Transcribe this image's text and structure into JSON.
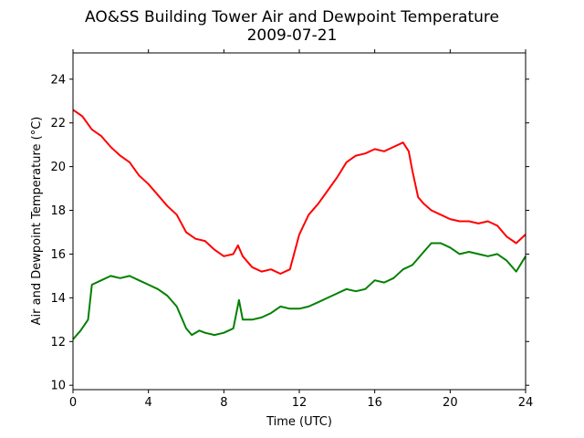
{
  "chart_data": {
    "type": "line",
    "title": "AO&SS Building Tower Air and Dewpoint Temperature",
    "subtitle": "2009-07-21",
    "xlabel": "Time (UTC)",
    "ylabel": "Air and Dewpoint Temperature (°C)",
    "xlim": [
      0,
      24
    ],
    "ylim": [
      9.8,
      25.2
    ],
    "xticks": [
      0,
      4,
      8,
      12,
      16,
      20,
      24
    ],
    "yticks": [
      10,
      12,
      14,
      16,
      18,
      20,
      22,
      24
    ],
    "grid": false,
    "legend": "none",
    "series": [
      {
        "color": "#ff0000",
        "x": [
          0,
          0.5,
          1,
          1.5,
          2,
          2.5,
          3,
          3.5,
          4,
          4.5,
          5,
          5.5,
          6,
          6.5,
          7,
          7.5,
          8,
          8.5,
          8.75,
          9,
          9.5,
          10,
          10.5,
          11,
          11.5,
          12,
          12.5,
          13,
          13.5,
          14,
          14.5,
          15,
          15.5,
          16,
          16.5,
          17,
          17.5,
          17.8,
          18,
          18.3,
          18.6,
          19,
          19.5,
          20,
          20.5,
          21,
          21.5,
          22,
          22.5,
          23,
          23.5,
          24
        ],
        "y": [
          22.6,
          22.3,
          21.7,
          21.4,
          20.9,
          20.5,
          20.2,
          19.6,
          19.2,
          18.7,
          18.2,
          17.8,
          17.0,
          16.7,
          16.6,
          16.2,
          15.9,
          16.0,
          16.4,
          15.9,
          15.4,
          15.2,
          15.3,
          15.1,
          15.3,
          16.9,
          17.8,
          18.3,
          18.9,
          19.5,
          20.2,
          20.5,
          20.6,
          20.8,
          20.7,
          20.9,
          21.1,
          20.7,
          19.8,
          18.6,
          18.3,
          18.0,
          17.8,
          17.6,
          17.5,
          17.5,
          17.4,
          17.5,
          17.3,
          16.8,
          16.5,
          16.9
        ]
      },
      {
        "color": "#008000",
        "x": [
          0,
          0.4,
          0.8,
          1,
          1.5,
          2,
          2.5,
          3,
          3.5,
          4,
          4.5,
          5,
          5.5,
          6,
          6.3,
          6.7,
          7,
          7.5,
          8,
          8.5,
          8.8,
          9,
          9.5,
          10,
          10.5,
          11,
          11.5,
          12,
          12.5,
          13,
          13.5,
          14,
          14.5,
          15,
          15.5,
          16,
          16.5,
          17,
          17.5,
          18,
          18.5,
          19,
          19.5,
          20,
          20.5,
          21,
          21.5,
          22,
          22.5,
          23,
          23.5,
          24
        ],
        "y": [
          12.1,
          12.5,
          13.0,
          14.6,
          14.8,
          15.0,
          14.9,
          15.0,
          14.8,
          14.6,
          14.4,
          14.1,
          13.6,
          12.6,
          12.3,
          12.5,
          12.4,
          12.3,
          12.4,
          12.6,
          13.9,
          13.0,
          13.0,
          13.1,
          13.3,
          13.6,
          13.5,
          13.5,
          13.6,
          13.8,
          14.0,
          14.2,
          14.4,
          14.3,
          14.4,
          14.8,
          14.7,
          14.9,
          15.3,
          15.5,
          16.0,
          16.5,
          16.5,
          16.3,
          16.0,
          16.1,
          16.0,
          15.9,
          16.0,
          15.7,
          15.2,
          15.9
        ]
      }
    ]
  }
}
